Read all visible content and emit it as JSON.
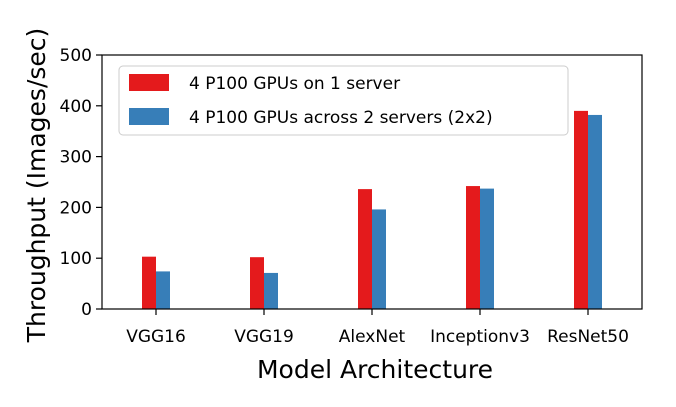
{
  "chart_data": {
    "type": "bar",
    "xlabel": "Model Architecture",
    "ylabel": "Throughput (Images/sec)",
    "ylim": [
      0,
      500
    ],
    "yticks": [
      0,
      100,
      200,
      300,
      400,
      500
    ],
    "categories": [
      "VGG16",
      "VGG19",
      "AlexNet",
      "Inceptionv3",
      "ResNet50"
    ],
    "series": [
      {
        "name": "4 P100 GPUs on 1 server",
        "color": "#e41a1c",
        "values": [
          103,
          102,
          236,
          242,
          390
        ]
      },
      {
        "name": "4 P100 GPUs across 2 servers (2x2)",
        "color": "#377eb8",
        "values": [
          74,
          71,
          196,
          237,
          382
        ]
      }
    ],
    "legend_position": "top-left",
    "grid": false
  }
}
